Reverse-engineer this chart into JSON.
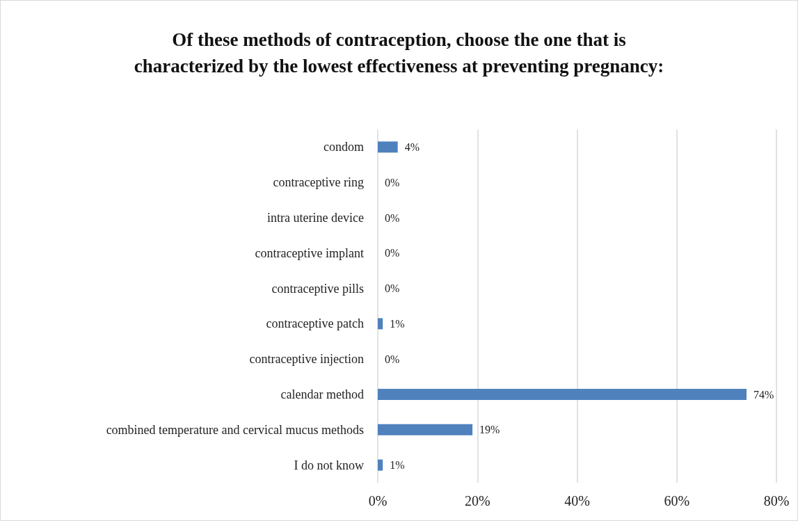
{
  "chart_data": {
    "type": "bar",
    "orientation": "horizontal",
    "title": "Of these methods of contraception, choose the one that is\ncharacterized by the lowest effectiveness at preventing pregnancy:",
    "categories": [
      "condom",
      "contraceptive ring",
      "intra uterine device",
      "contraceptive implant",
      "contraceptive pills",
      "contraceptive patch",
      "contraceptive injection",
      "calendar method",
      "combined temperature and cervical mucus methods",
      "I do not know"
    ],
    "values": [
      4,
      0,
      0,
      0,
      0,
      1,
      0,
      74,
      19,
      1
    ],
    "value_labels": [
      "4%",
      "0%",
      "0%",
      "0%",
      "0%",
      "1%",
      "0%",
      "74%",
      "19%",
      "1%"
    ],
    "color": "#4f81bd",
    "xlim": [
      0,
      80
    ],
    "xticks": [
      {
        "value": 0,
        "label": "0%"
      },
      {
        "value": 20,
        "label": "20%"
      },
      {
        "value": 40,
        "label": "40%"
      },
      {
        "value": 60,
        "label": "60%"
      },
      {
        "value": 80,
        "label": "80%"
      }
    ],
    "grid": "x"
  }
}
